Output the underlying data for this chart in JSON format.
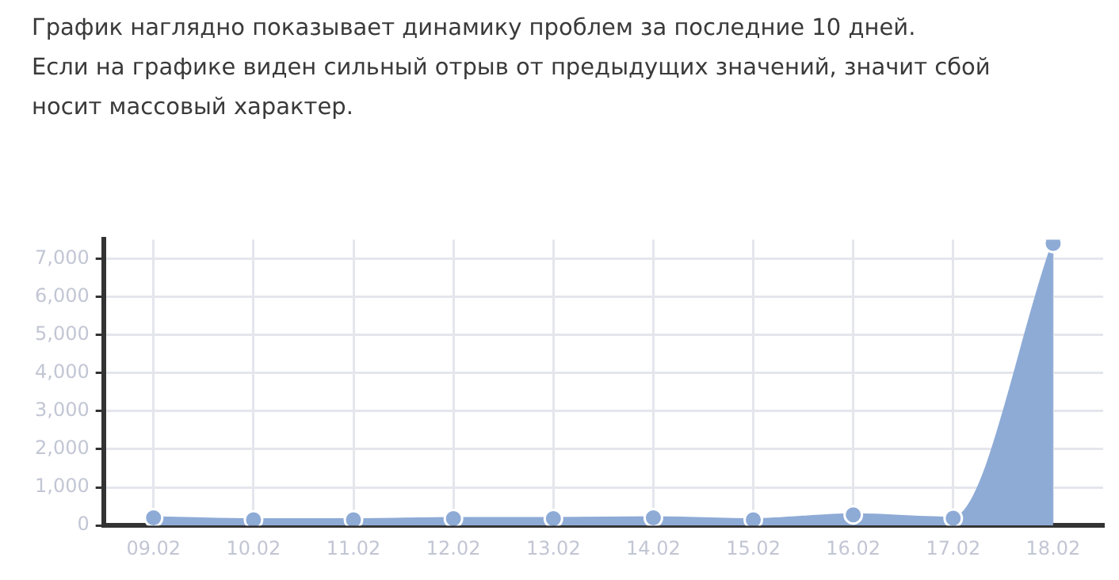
{
  "chart_data": {
    "type": "area",
    "title": "График наглядно показывает динамику проблем за последние 10 дней.",
    "subtitle": "Если на графике виден сильный отрыв от предыдущих значений, значит сбой носит массовый характер.",
    "categories": [
      "09.02",
      "10.02",
      "11.02",
      "12.02",
      "13.02",
      "14.02",
      "15.02",
      "16.02",
      "17.02",
      "18.02"
    ],
    "series": [
      {
        "color": "#8eabd6",
        "values": [
          200,
          150,
          150,
          180,
          180,
          200,
          150,
          280,
          190,
          7400
        ]
      }
    ],
    "ylim": [
      0,
      7500
    ],
    "yticks": [
      {
        "value": 0,
        "label": "0"
      },
      {
        "value": 1000,
        "label": "1,000"
      },
      {
        "value": 2000,
        "label": "2,000"
      },
      {
        "value": 3000,
        "label": "3,000"
      },
      {
        "value": 4000,
        "label": "4,000"
      },
      {
        "value": 5000,
        "label": "5,000"
      },
      {
        "value": 6000,
        "label": "6,000"
      },
      {
        "value": 7000,
        "label": "7,000"
      }
    ],
    "grid": true,
    "legend": false,
    "marker": "circle",
    "line_style": "solid"
  }
}
